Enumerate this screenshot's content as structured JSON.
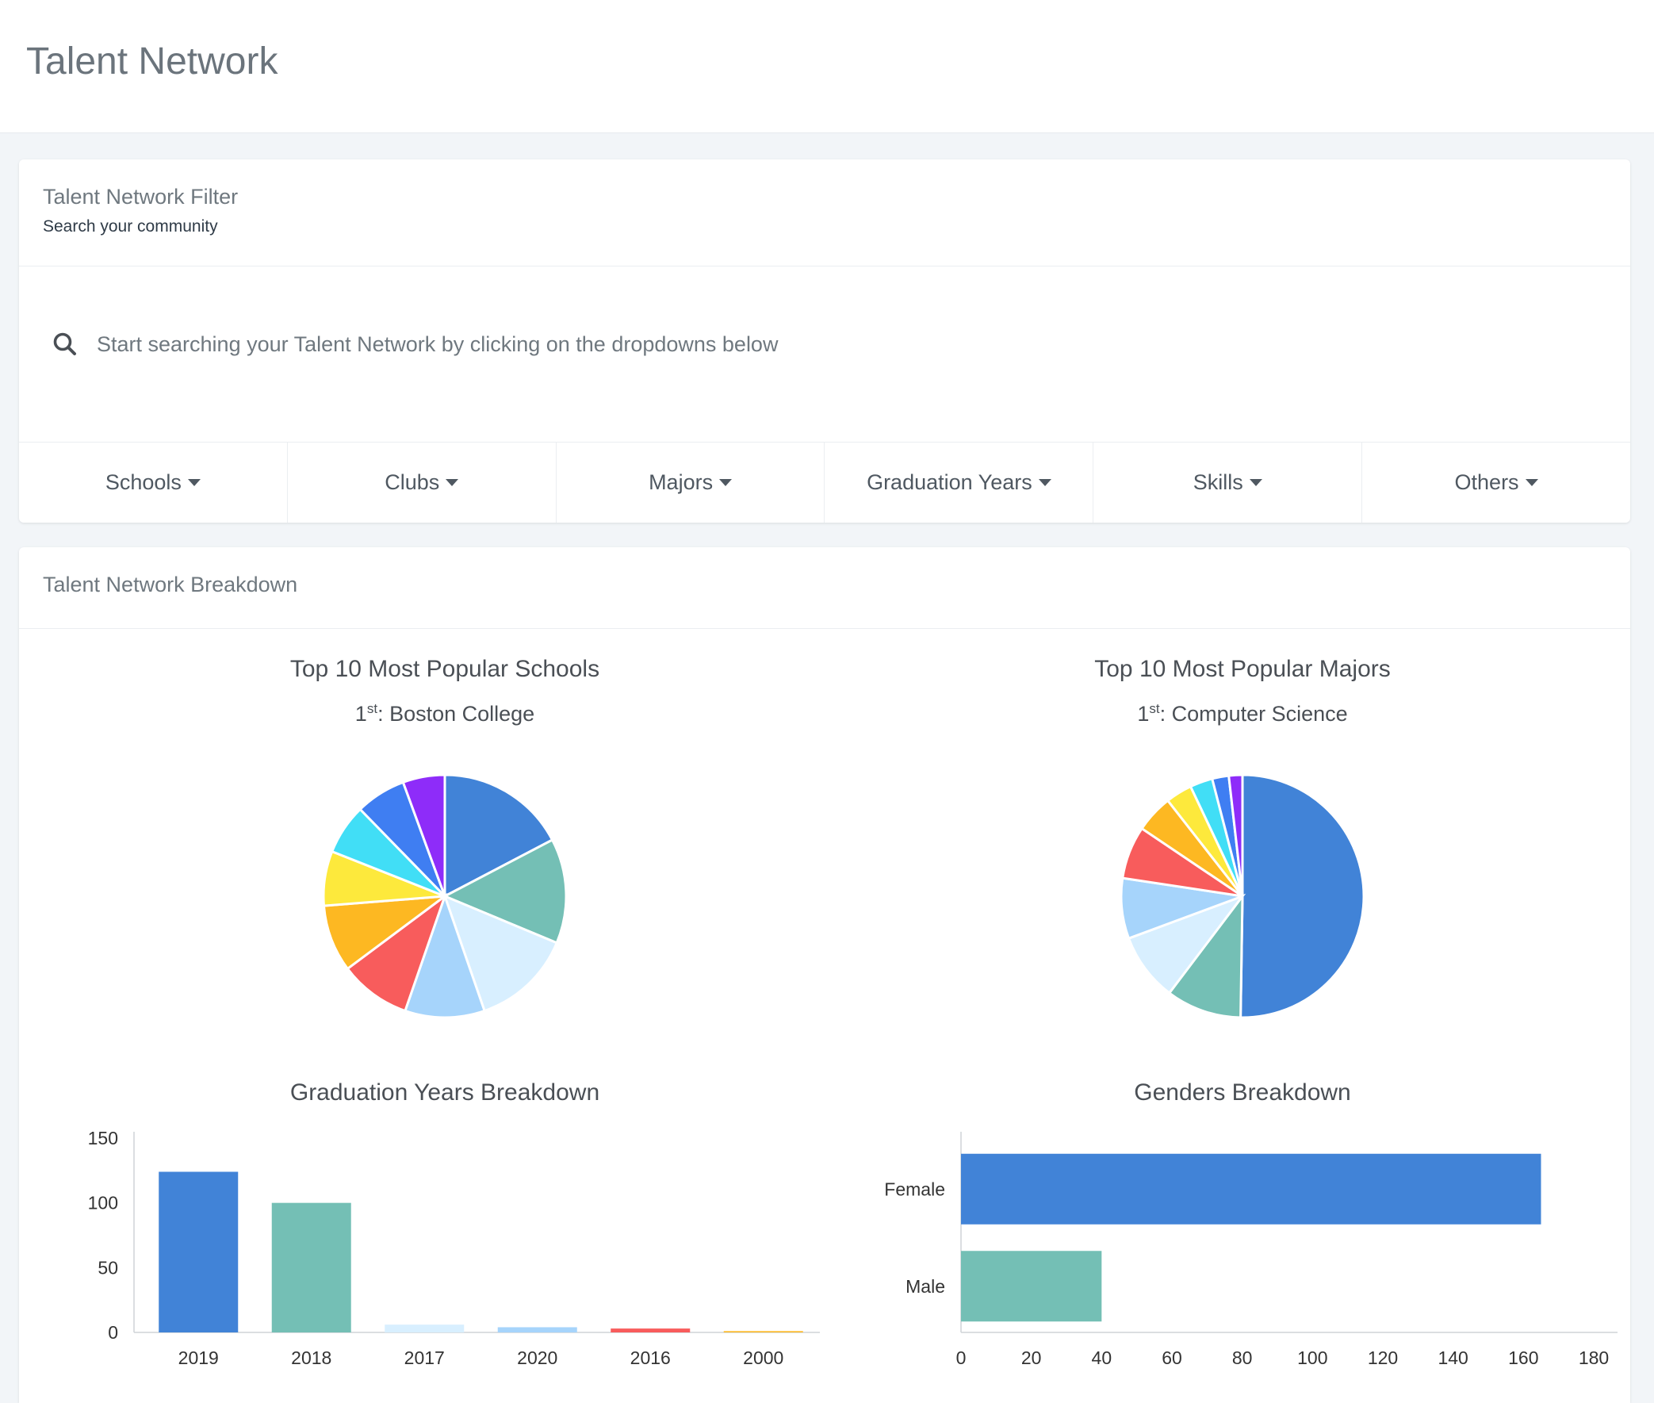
{
  "header": {
    "title": "Talent Network"
  },
  "filter_card": {
    "title": "Talent Network Filter",
    "subtitle": "Search your community",
    "search": {
      "placeholder": "Start searching your Talent Network by clicking on the dropdowns below",
      "value": ""
    },
    "dropdowns": [
      "Schools",
      "Clubs",
      "Majors",
      "Graduation Years",
      "Skills",
      "Others"
    ],
    "icon": "search-icon"
  },
  "breakdown_card": {
    "title": "Talent Network Breakdown"
  },
  "colors": [
    "#4183d7",
    "#74bfb5",
    "#d8efff",
    "#a6d4fb",
    "#f85c5c",
    "#fdb822",
    "#fde93c",
    "#41def6",
    "#3f7ef2",
    "#8e2cf9"
  ],
  "chart_data": [
    {
      "type": "pie",
      "title": "Top 10 Most Popular Schools",
      "subtitle_rank": "1",
      "subtitle_suffix": "st",
      "subtitle_value": ": Boston College",
      "values": [
        15.5,
        12.5,
        12,
        9.5,
        8.5,
        8,
        6.5,
        6,
        6,
        5
      ]
    },
    {
      "type": "pie",
      "title": "Top 10 Most Popular Majors",
      "subtitle_rank": "1",
      "subtitle_suffix": "st",
      "subtitle_value": ": Computer Science",
      "values": [
        50,
        10,
        9,
        8,
        7,
        5,
        3.5,
        3,
        2.2,
        1.8
      ]
    },
    {
      "type": "bar",
      "title": "Graduation Years Breakdown",
      "categories": [
        "2019",
        "2018",
        "2017",
        "2020",
        "2016",
        "2000"
      ],
      "values": [
        124,
        100,
        6,
        4,
        3,
        1
      ],
      "ylim": [
        0,
        150
      ],
      "yticks": [
        "0",
        "50",
        "100",
        "150"
      ]
    },
    {
      "type": "bar",
      "orientation": "horizontal",
      "title": "Genders Breakdown",
      "categories": [
        "Female",
        "Male"
      ],
      "values": [
        165,
        40
      ],
      "xlim": [
        0,
        180
      ],
      "xticks": [
        "0",
        "20",
        "40",
        "60",
        "80",
        "100",
        "120",
        "140",
        "160",
        "180"
      ]
    }
  ]
}
